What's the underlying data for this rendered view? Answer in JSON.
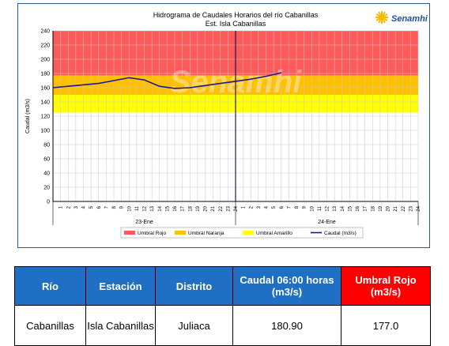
{
  "chart_data": {
    "type": "line",
    "title": "Hidrograma de Caudales Horarios del río Cabanillas",
    "subtitle": "Est. Isla Cabanillas",
    "ylabel": "Caudal   (m3/s)",
    "ylim": [
      0,
      240
    ],
    "yticks": [
      0,
      20,
      40,
      60,
      80,
      100,
      120,
      140,
      160,
      180,
      200,
      220,
      240
    ],
    "xlim": [
      0,
      48
    ],
    "hour_labels": [
      "1",
      "2",
      "3",
      "4",
      "5",
      "6",
      "7",
      "8",
      "9",
      "10",
      "11",
      "12",
      "13",
      "14",
      "15",
      "16",
      "17",
      "18",
      "19",
      "20",
      "21",
      "22",
      "23",
      "24",
      "1",
      "2",
      "3",
      "4",
      "5",
      "6",
      "7",
      "8",
      "9",
      "10",
      "11",
      "12",
      "13",
      "14",
      "15",
      "16",
      "17",
      "18",
      "19",
      "20",
      "21",
      "22",
      "23",
      "24"
    ],
    "day_labels": [
      "23-Ene",
      "24-Ene"
    ],
    "bands": [
      {
        "name": "Umbral Rojo",
        "from": 177,
        "to": 250,
        "color": "#ff5a5a"
      },
      {
        "name": "Umbral Naranja",
        "from": 150,
        "to": 177,
        "color": "#ffc000"
      },
      {
        "name": "Umbral Amarillo",
        "from": 125,
        "to": 150,
        "color": "#ffff00"
      }
    ],
    "series": [
      {
        "name": "Caudal (m3/s)",
        "color": "#1a1a8a",
        "x": [
          0,
          3,
          6,
          8,
          10,
          12,
          14,
          16,
          18,
          20,
          22,
          24,
          26,
          28,
          30
        ],
        "y": [
          160,
          163,
          166,
          170,
          174,
          171,
          162,
          159,
          160,
          163,
          166,
          169,
          172,
          176,
          181
        ]
      }
    ],
    "current_time_x": 24,
    "legend": [
      "Umbral Rojo",
      "Umbral Naranja",
      "Umbral Amarillo",
      "Caudal (m3/s)"
    ],
    "legend_position": "bottom",
    "grid": true,
    "watermark": "Senamhi"
  },
  "logo": {
    "text": "Senamhi",
    "color": "#1a4f9c",
    "sun_color": "#f5b800"
  },
  "table": {
    "headers": [
      "Río",
      "Estación",
      "Distrito",
      "Caudal  06:00 horas (m3/s)",
      "Umbral Rojo (m3/s)"
    ],
    "row": [
      "Cabanillas",
      "Isla Cabanillas",
      "Juliaca",
      "180.90",
      "177.0"
    ]
  }
}
